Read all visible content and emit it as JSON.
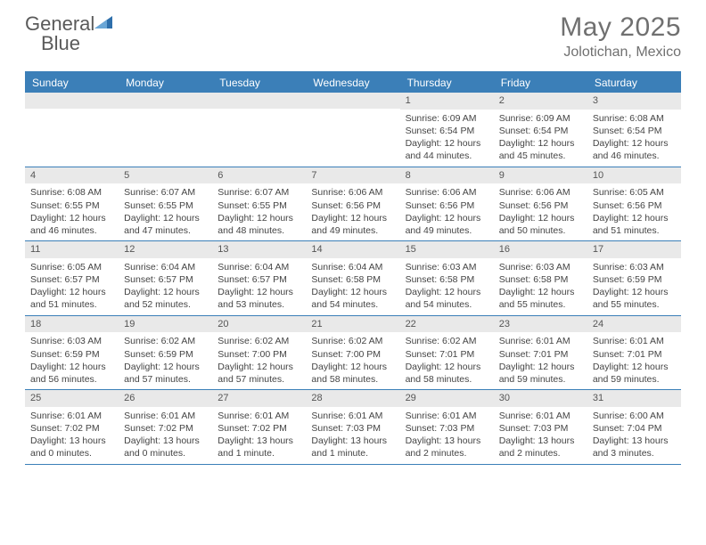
{
  "logo": {
    "text1": "General",
    "text2": "Blue"
  },
  "title": "May 2025",
  "location": "Jolotichan, Mexico",
  "colors": {
    "headerBlue": "#3b7fb8",
    "barGray": "#e9e9e9",
    "textGray": "#707070",
    "bodyText": "#444444"
  },
  "dayNames": [
    "Sunday",
    "Monday",
    "Tuesday",
    "Wednesday",
    "Thursday",
    "Friday",
    "Saturday"
  ],
  "weeks": [
    [
      {
        "empty": true
      },
      {
        "empty": true
      },
      {
        "empty": true
      },
      {
        "empty": true
      },
      {
        "num": "1",
        "sunrise": "Sunrise: 6:09 AM",
        "sunset": "Sunset: 6:54 PM",
        "daylight": "Daylight: 12 hours and 44 minutes."
      },
      {
        "num": "2",
        "sunrise": "Sunrise: 6:09 AM",
        "sunset": "Sunset: 6:54 PM",
        "daylight": "Daylight: 12 hours and 45 minutes."
      },
      {
        "num": "3",
        "sunrise": "Sunrise: 6:08 AM",
        "sunset": "Sunset: 6:54 PM",
        "daylight": "Daylight: 12 hours and 46 minutes."
      }
    ],
    [
      {
        "num": "4",
        "sunrise": "Sunrise: 6:08 AM",
        "sunset": "Sunset: 6:55 PM",
        "daylight": "Daylight: 12 hours and 46 minutes."
      },
      {
        "num": "5",
        "sunrise": "Sunrise: 6:07 AM",
        "sunset": "Sunset: 6:55 PM",
        "daylight": "Daylight: 12 hours and 47 minutes."
      },
      {
        "num": "6",
        "sunrise": "Sunrise: 6:07 AM",
        "sunset": "Sunset: 6:55 PM",
        "daylight": "Daylight: 12 hours and 48 minutes."
      },
      {
        "num": "7",
        "sunrise": "Sunrise: 6:06 AM",
        "sunset": "Sunset: 6:56 PM",
        "daylight": "Daylight: 12 hours and 49 minutes."
      },
      {
        "num": "8",
        "sunrise": "Sunrise: 6:06 AM",
        "sunset": "Sunset: 6:56 PM",
        "daylight": "Daylight: 12 hours and 49 minutes."
      },
      {
        "num": "9",
        "sunrise": "Sunrise: 6:06 AM",
        "sunset": "Sunset: 6:56 PM",
        "daylight": "Daylight: 12 hours and 50 minutes."
      },
      {
        "num": "10",
        "sunrise": "Sunrise: 6:05 AM",
        "sunset": "Sunset: 6:56 PM",
        "daylight": "Daylight: 12 hours and 51 minutes."
      }
    ],
    [
      {
        "num": "11",
        "sunrise": "Sunrise: 6:05 AM",
        "sunset": "Sunset: 6:57 PM",
        "daylight": "Daylight: 12 hours and 51 minutes."
      },
      {
        "num": "12",
        "sunrise": "Sunrise: 6:04 AM",
        "sunset": "Sunset: 6:57 PM",
        "daylight": "Daylight: 12 hours and 52 minutes."
      },
      {
        "num": "13",
        "sunrise": "Sunrise: 6:04 AM",
        "sunset": "Sunset: 6:57 PM",
        "daylight": "Daylight: 12 hours and 53 minutes."
      },
      {
        "num": "14",
        "sunrise": "Sunrise: 6:04 AM",
        "sunset": "Sunset: 6:58 PM",
        "daylight": "Daylight: 12 hours and 54 minutes."
      },
      {
        "num": "15",
        "sunrise": "Sunrise: 6:03 AM",
        "sunset": "Sunset: 6:58 PM",
        "daylight": "Daylight: 12 hours and 54 minutes."
      },
      {
        "num": "16",
        "sunrise": "Sunrise: 6:03 AM",
        "sunset": "Sunset: 6:58 PM",
        "daylight": "Daylight: 12 hours and 55 minutes."
      },
      {
        "num": "17",
        "sunrise": "Sunrise: 6:03 AM",
        "sunset": "Sunset: 6:59 PM",
        "daylight": "Daylight: 12 hours and 55 minutes."
      }
    ],
    [
      {
        "num": "18",
        "sunrise": "Sunrise: 6:03 AM",
        "sunset": "Sunset: 6:59 PM",
        "daylight": "Daylight: 12 hours and 56 minutes."
      },
      {
        "num": "19",
        "sunrise": "Sunrise: 6:02 AM",
        "sunset": "Sunset: 6:59 PM",
        "daylight": "Daylight: 12 hours and 57 minutes."
      },
      {
        "num": "20",
        "sunrise": "Sunrise: 6:02 AM",
        "sunset": "Sunset: 7:00 PM",
        "daylight": "Daylight: 12 hours and 57 minutes."
      },
      {
        "num": "21",
        "sunrise": "Sunrise: 6:02 AM",
        "sunset": "Sunset: 7:00 PM",
        "daylight": "Daylight: 12 hours and 58 minutes."
      },
      {
        "num": "22",
        "sunrise": "Sunrise: 6:02 AM",
        "sunset": "Sunset: 7:01 PM",
        "daylight": "Daylight: 12 hours and 58 minutes."
      },
      {
        "num": "23",
        "sunrise": "Sunrise: 6:01 AM",
        "sunset": "Sunset: 7:01 PM",
        "daylight": "Daylight: 12 hours and 59 minutes."
      },
      {
        "num": "24",
        "sunrise": "Sunrise: 6:01 AM",
        "sunset": "Sunset: 7:01 PM",
        "daylight": "Daylight: 12 hours and 59 minutes."
      }
    ],
    [
      {
        "num": "25",
        "sunrise": "Sunrise: 6:01 AM",
        "sunset": "Sunset: 7:02 PM",
        "daylight": "Daylight: 13 hours and 0 minutes."
      },
      {
        "num": "26",
        "sunrise": "Sunrise: 6:01 AM",
        "sunset": "Sunset: 7:02 PM",
        "daylight": "Daylight: 13 hours and 0 minutes."
      },
      {
        "num": "27",
        "sunrise": "Sunrise: 6:01 AM",
        "sunset": "Sunset: 7:02 PM",
        "daylight": "Daylight: 13 hours and 1 minute."
      },
      {
        "num": "28",
        "sunrise": "Sunrise: 6:01 AM",
        "sunset": "Sunset: 7:03 PM",
        "daylight": "Daylight: 13 hours and 1 minute."
      },
      {
        "num": "29",
        "sunrise": "Sunrise: 6:01 AM",
        "sunset": "Sunset: 7:03 PM",
        "daylight": "Daylight: 13 hours and 2 minutes."
      },
      {
        "num": "30",
        "sunrise": "Sunrise: 6:01 AM",
        "sunset": "Sunset: 7:03 PM",
        "daylight": "Daylight: 13 hours and 2 minutes."
      },
      {
        "num": "31",
        "sunrise": "Sunrise: 6:00 AM",
        "sunset": "Sunset: 7:04 PM",
        "daylight": "Daylight: 13 hours and 3 minutes."
      }
    ]
  ]
}
